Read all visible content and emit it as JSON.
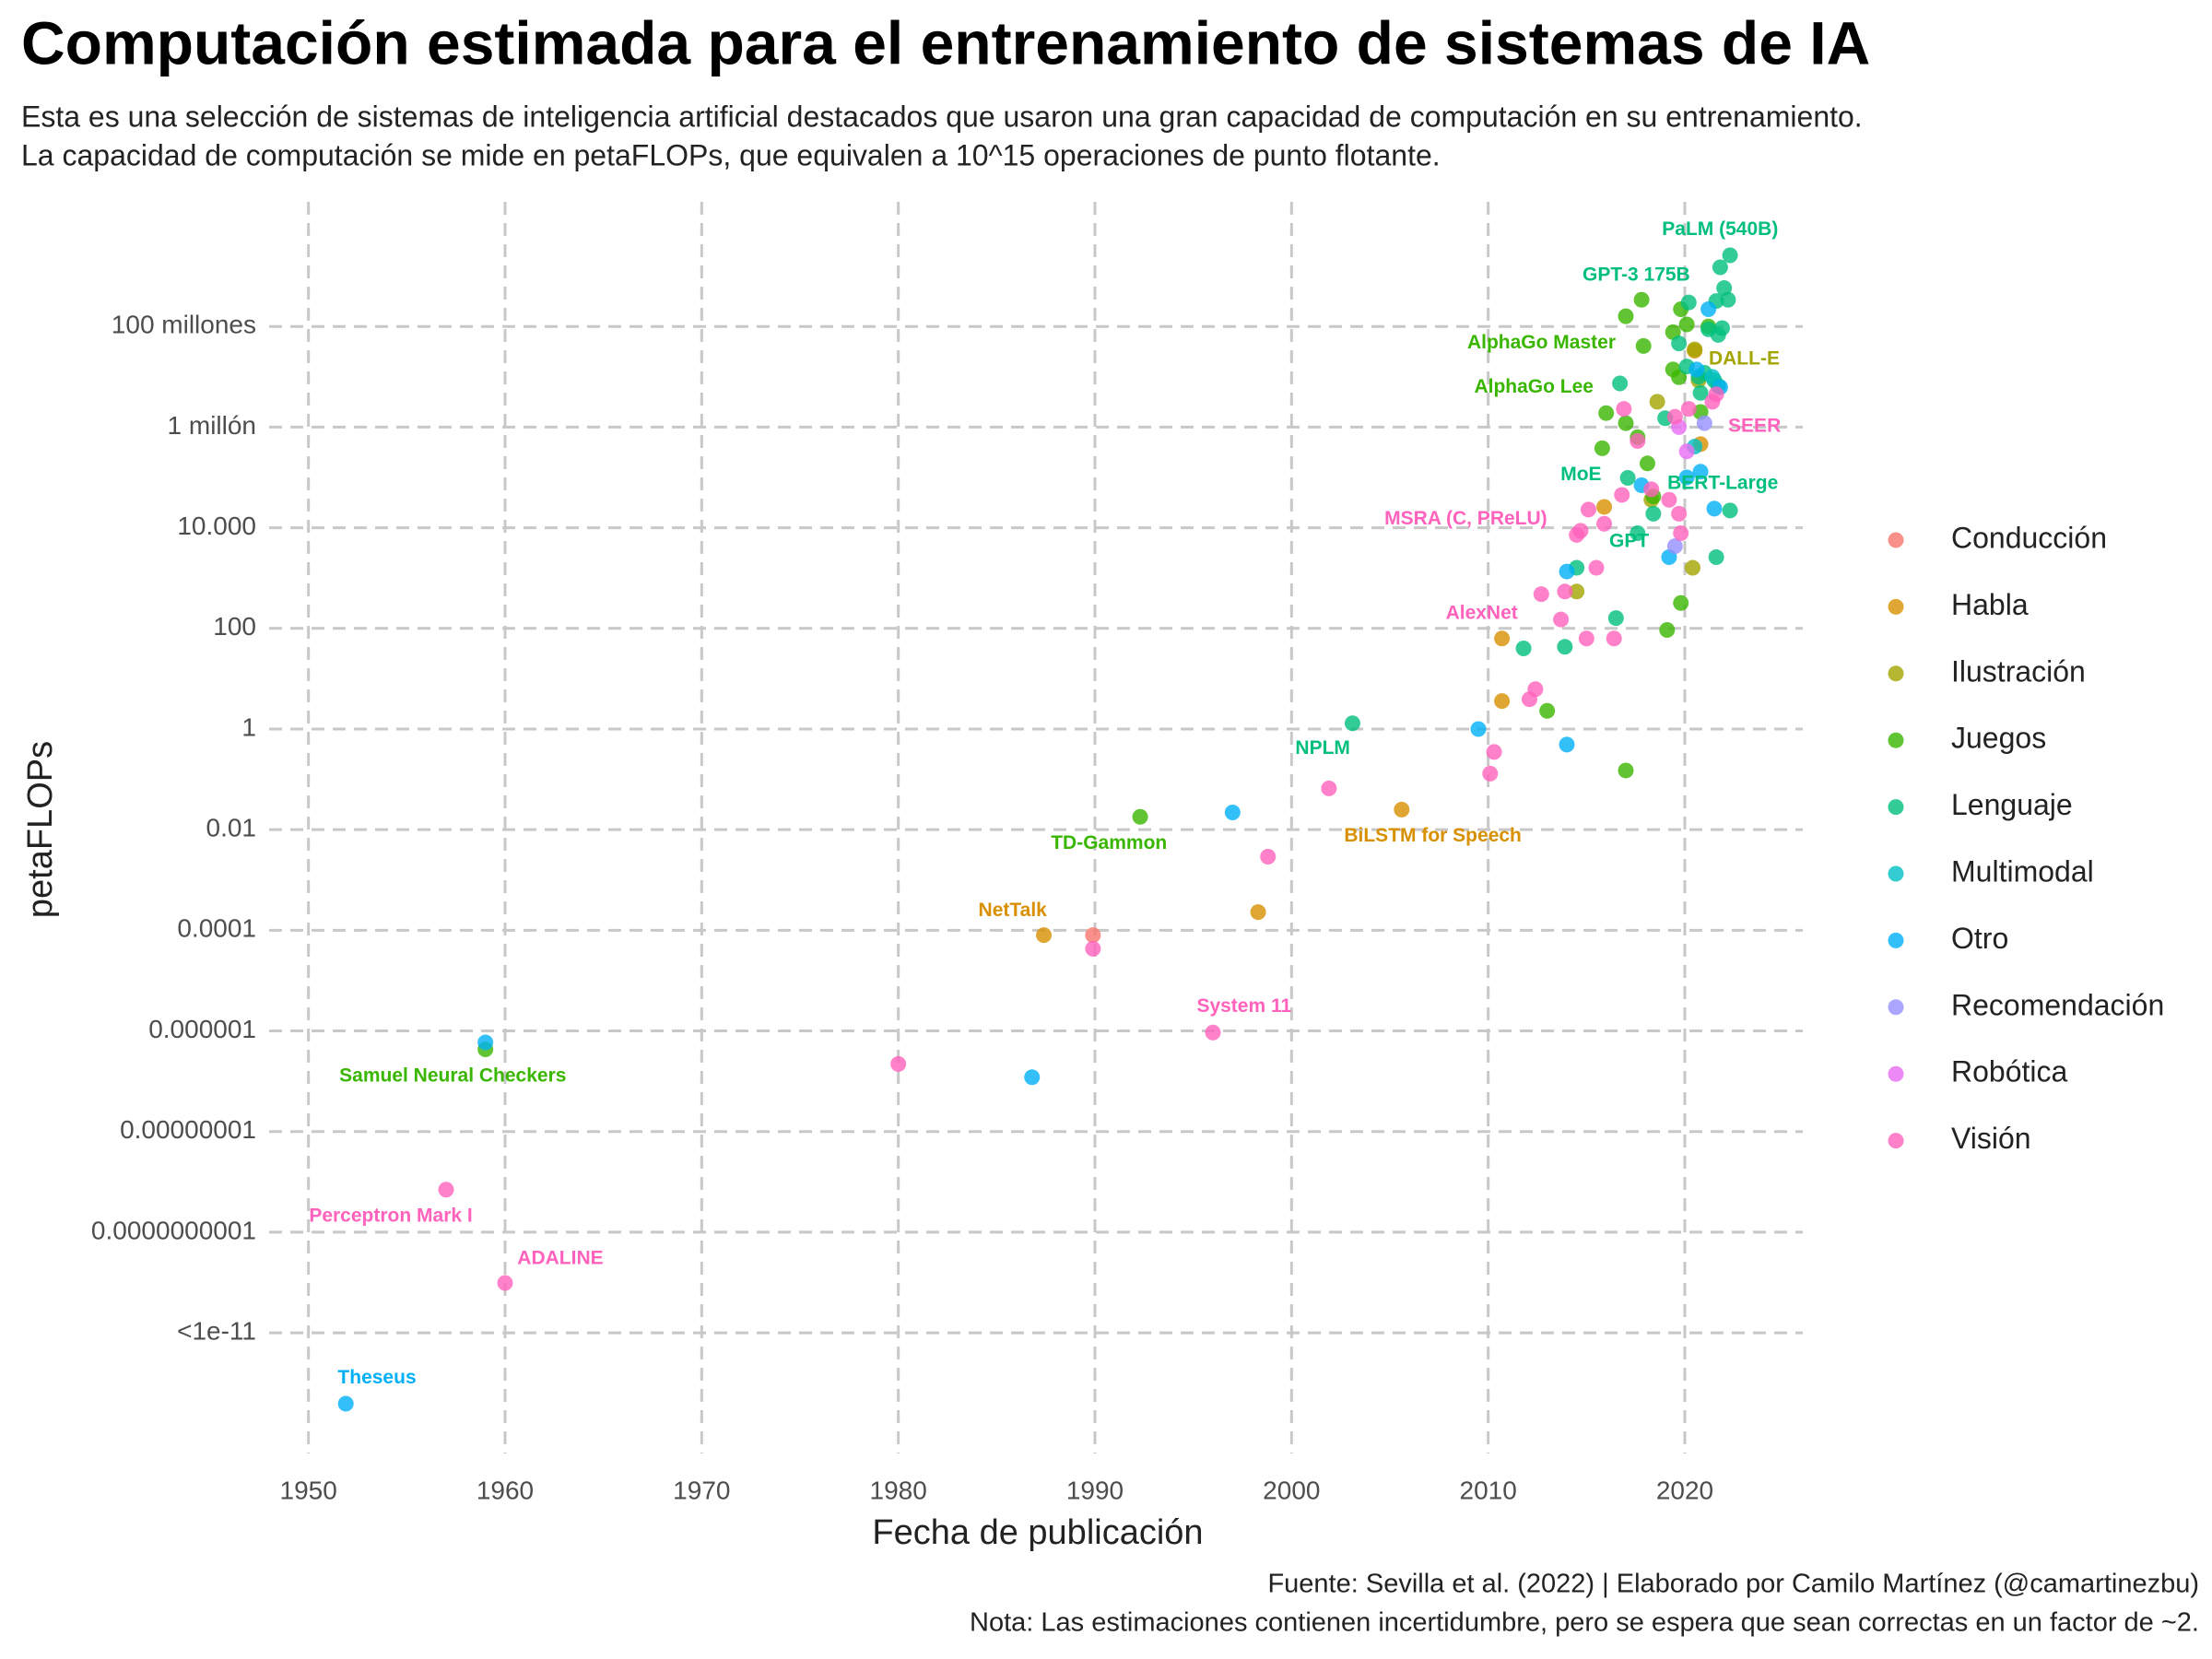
{
  "chart_data": {
    "type": "scatter",
    "title": "Computación estimada para el entrenamiento de sistemas de IA",
    "subtitle": [
      "Esta es una selección de sistemas de inteligencia artificial destacados que usaron una gran capacidad de computación en su entrenamiento.",
      "La capacidad de computación se mide en petaFLOPs, que equivalen a 10^15 operaciones de punto flotante."
    ],
    "x_label": "Fecha de publicación",
    "y_label": "petaFLOPs",
    "caption": [
      "Fuente: Sevilla et al. (2022) | Elaborado por Camilo Martínez (@camartinezbu)",
      "Nota: Las estimaciones contienen incertidumbre, pero se espera que sean correctas en un factor de ~2."
    ],
    "xlim": [
      1948,
      2026
    ],
    "xticks": [
      1950,
      1960,
      1970,
      1980,
      1990,
      2000,
      2010,
      2020
    ],
    "ylim": [
      4e-15,
      30000000000.0
    ],
    "log_y": true,
    "yticks": [
      {
        "value": 1e-12,
        "label": "<1e-11"
      },
      {
        "value": 1e-10,
        "label": "0.0000000001"
      },
      {
        "value": 1e-08,
        "label": "0.00000001"
      },
      1e-06,
      0.0001,
      0.01,
      1,
      100,
      {
        "value": 10000,
        "label": "10.000"
      },
      {
        "value": 1000000,
        "label": "1 millón"
      },
      {
        "value": 100000000,
        "label": "100 millones"
      }
    ],
    "grid": true,
    "legend": "right",
    "series": [
      {
        "name": "Conducción",
        "color": "#F8766D",
        "x": [
          1989.9
        ],
        "values": [
          8e-05
        ]
      },
      {
        "name": "Habla",
        "color": "#D89000",
        "x": [
          1987.4,
          1998.3,
          2005.6,
          2010.7,
          2010.7,
          2015.9,
          2020.8,
          2020.5
        ],
        "values": [
          8e-05,
          0.00023,
          0.025,
          63,
          3.6,
          26000,
          460000,
          33000000
        ],
        "labels": [
          "NetTalk",
          null,
          "BiLSTM for Speech",
          null,
          null,
          null,
          null,
          null
        ]
      },
      {
        "name": "Ilustración",
        "color": "#A3A500",
        "x": [
          2020.5,
          2014.5,
          2020.4,
          2018.6,
          2020.7,
          2018.3
        ],
        "values": [
          35000000,
          540,
          1600,
          3200000,
          8500000,
          36000
        ],
        "labels": [
          "DALL-E",
          null,
          null,
          null,
          null,
          null
        ]
      },
      {
        "name": "Juegos",
        "color": "#39B600",
        "x": [
          1959.0,
          1992.3,
          2016.0,
          2017.9,
          2013.0,
          2017.0,
          2019.1,
          2019.8,
          2017.0,
          2017.8,
          2015.8,
          2017.0,
          2017.6,
          2018.1,
          2018.4,
          2019.4,
          2019.8,
          2020.1,
          2019.7,
          2020.8,
          2021.2,
          2019.4
        ],
        "values": [
          4.3e-07,
          0.018,
          1900000,
          41000000,
          2.3,
          0.15,
          93,
          320,
          160000000,
          340000000,
          380000,
          1200000,
          630000,
          190000,
          42000,
          77000000,
          220000000,
          110000000,
          9800000,
          2000000,
          100000000,
          14000000
        ],
        "labels": [
          "Samuel Neural Checkers",
          "TD-Gammon",
          "AlphaGo Lee",
          "AlphaGo Master",
          null,
          null,
          null,
          null,
          null,
          null,
          null,
          null,
          null,
          null,
          null,
          null,
          null,
          null,
          null,
          null,
          null,
          null
        ]
      },
      {
        "name": "Lenguaje",
        "color": "#00BF7D",
        "x": [
          2003.1,
          2017.6,
          2017.1,
          2018.4,
          2020.2,
          2022.3,
          2011.8,
          2013.9,
          2014.5,
          2016.5,
          2016.7,
          2021.6,
          2022.3,
          2019.0,
          2019.7,
          2021.8,
          2022.0,
          2022.2,
          2021.6,
          2021.2,
          2021.9,
          2021.0,
          2021.5,
          2020.1,
          2020.7,
          2020.8,
          2021.7,
          2021.7
        ],
        "values": [
          1.3,
          7800,
          98000,
          19000,
          300000000,
          2600000000,
          40,
          43,
          1600,
          160,
          7400000,
          2600,
          22000,
          1500000,
          46000000,
          1500000000,
          580000000,
          340000000,
          320000000,
          88000000,
          93000000,
          12000000,
          8500000,
          16000000,
          10000000,
          4800000,
          6600000,
          68000000
        ],
        "labels": [
          "NPLM",
          "GPT",
          "MoE",
          "BERT-Large",
          "GPT-3 175B",
          "PaLM (540B)",
          null,
          null,
          null,
          null,
          null,
          null,
          null,
          null,
          null,
          null,
          null,
          null,
          null,
          null,
          null,
          null,
          null,
          null,
          null,
          null,
          null,
          null
        ]
      },
      {
        "name": "Multimodal",
        "color": "#00BFC4",
        "x": [
          2020.5,
          2021.4
        ],
        "values": [
          410000,
          10000000
        ]
      },
      {
        "name": "Otro",
        "color": "#00B0F6",
        "x": [
          1951.9,
          1959.0,
          1986.8,
          1997.0,
          2009.5,
          2014.0,
          2014.0,
          2019.2,
          2017.8,
          2020.1,
          2020.8,
          2021.5,
          2021.2,
          2020.6,
          2021.8
        ],
        "values": [
          3.9e-14,
          5.9e-07,
          1.2e-07,
          0.022,
          1,
          0.49,
          1350,
          2600,
          70000,
          100000,
          130000,
          24000,
          220000000,
          14000000,
          6200000
        ],
        "labels": [
          "Theseus",
          null,
          null,
          null,
          null,
          null,
          null,
          null,
          null,
          null,
          null,
          null,
          null,
          null,
          null
        ]
      },
      {
        "name": "Recomendación",
        "color": "#9590FF",
        "x": [
          2021.0,
          2019.5
        ],
        "values": [
          1200000,
          4300
        ]
      },
      {
        "name": "Robótica",
        "color": "#E76BF3",
        "x": [
          2019.7,
          2020.1
        ],
        "values": [
          1000000,
          330000
        ]
      },
      {
        "name": "Visión",
        "color": "#FF62BC",
        "x": [
          1957.0,
          1960.0,
          1996.0,
          2012.7,
          2014.7,
          2021.6,
          1980.0,
          1989.9,
          1998.8,
          2001.9,
          2010.1,
          2010.3,
          2012.1,
          2012.4,
          2013.7,
          2013.9,
          2014.5,
          2015.0,
          2015.1,
          2015.5,
          2015.9,
          2016.4,
          2016.8,
          2016.9,
          2017.6,
          2018.3,
          2019.2,
          2019.7,
          2019.8,
          2019.5,
          2020.2,
          2021.4
        ],
        "values": [
          7e-10,
          9.8e-12,
          9.3e-07,
          480,
          8700,
          4500000,
          2.2e-07,
          4.3e-05,
          0.0029,
          0.066,
          0.13,
          0.35,
          3.9,
          6.2,
          150,
          540,
          7200,
          63,
          23000,
          1600,
          12000,
          63,
          45000,
          2300000,
          530000,
          58000,
          36000,
          19000,
          7800,
          1600000,
          2300000,
          3200000
        ],
        "labels": [
          "Perceptron Mark I",
          "ADALINE",
          "System 11",
          "AlexNet",
          "MSRA (C, PReLU)",
          "SEER",
          null,
          null,
          null,
          null,
          null,
          null,
          null,
          null,
          null,
          null,
          null,
          null,
          null,
          null,
          null,
          null,
          null,
          null,
          null,
          null,
          null,
          null,
          null,
          null,
          null,
          null
        ]
      }
    ]
  }
}
